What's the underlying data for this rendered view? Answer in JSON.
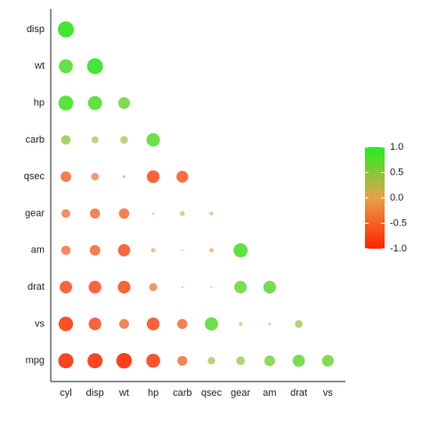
{
  "chart_data": {
    "type": "correlation",
    "rows": [
      "disp",
      "wt",
      "hp",
      "carb",
      "qsec",
      "gear",
      "am",
      "drat",
      "vs",
      "mpg"
    ],
    "columns": [
      "cyl",
      "disp",
      "wt",
      "hp",
      "carb",
      "qsec",
      "gear",
      "am",
      "drat",
      "vs"
    ],
    "values": [
      [
        0.9,
        null,
        null,
        null,
        null,
        null,
        null,
        null,
        null,
        null
      ],
      [
        0.78,
        0.89,
        null,
        null,
        null,
        null,
        null,
        null,
        null,
        null
      ],
      [
        0.83,
        0.79,
        0.66,
        null,
        null,
        null,
        null,
        null,
        null,
        null
      ],
      [
        0.53,
        0.39,
        0.43,
        0.75,
        null,
        null,
        null,
        null,
        null,
        null
      ],
      [
        -0.59,
        -0.43,
        -0.17,
        -0.71,
        -0.66,
        null,
        null,
        null,
        null,
        null
      ],
      [
        -0.49,
        -0.56,
        -0.58,
        -0.13,
        0.27,
        -0.21,
        null,
        null,
        null,
        null
      ],
      [
        -0.52,
        -0.59,
        -0.69,
        -0.24,
        0.06,
        -0.23,
        0.79,
        null,
        null,
        null
      ],
      [
        -0.7,
        -0.71,
        -0.71,
        -0.45,
        -0.09,
        0.09,
        0.7,
        0.71,
        null,
        null
      ],
      [
        -0.81,
        -0.71,
        -0.55,
        -0.72,
        -0.57,
        0.74,
        0.21,
        0.17,
        0.44,
        null
      ],
      [
        -0.85,
        -0.85,
        -0.87,
        -0.78,
        -0.55,
        0.42,
        0.48,
        0.6,
        0.68,
        0.66
      ]
    ],
    "colors": {
      "low": "#ff2200",
      "mid": "#e8a04a",
      "high": "#22ee22"
    },
    "clim": [
      -1,
      1
    ],
    "cticks": [
      {
        "value": -1,
        "label": "-1.0"
      },
      {
        "value": -0.5,
        "label": "-0.5"
      },
      {
        "value": 0,
        "label": "0.0"
      },
      {
        "value": 0.5,
        "label": "0.5"
      },
      {
        "value": 1,
        "label": "1.0"
      }
    ]
  }
}
